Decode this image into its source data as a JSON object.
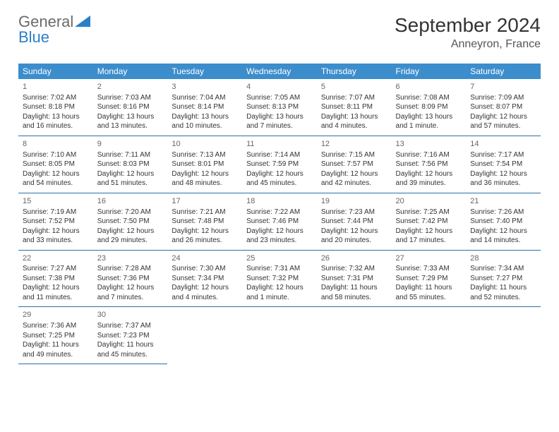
{
  "logo": {
    "word1": "General",
    "word2": "Blue"
  },
  "title": "September 2024",
  "location": "Anneyron, France",
  "header_bg": "#3c8dcc",
  "border_color": "#2c6fa8",
  "day_names": [
    "Sunday",
    "Monday",
    "Tuesday",
    "Wednesday",
    "Thursday",
    "Friday",
    "Saturday"
  ],
  "weeks": [
    [
      {
        "n": "1",
        "sr": "Sunrise: 7:02 AM",
        "ss": "Sunset: 8:18 PM",
        "d1": "Daylight: 13 hours",
        "d2": "and 16 minutes."
      },
      {
        "n": "2",
        "sr": "Sunrise: 7:03 AM",
        "ss": "Sunset: 8:16 PM",
        "d1": "Daylight: 13 hours",
        "d2": "and 13 minutes."
      },
      {
        "n": "3",
        "sr": "Sunrise: 7:04 AM",
        "ss": "Sunset: 8:14 PM",
        "d1": "Daylight: 13 hours",
        "d2": "and 10 minutes."
      },
      {
        "n": "4",
        "sr": "Sunrise: 7:05 AM",
        "ss": "Sunset: 8:13 PM",
        "d1": "Daylight: 13 hours",
        "d2": "and 7 minutes."
      },
      {
        "n": "5",
        "sr": "Sunrise: 7:07 AM",
        "ss": "Sunset: 8:11 PM",
        "d1": "Daylight: 13 hours",
        "d2": "and 4 minutes."
      },
      {
        "n": "6",
        "sr": "Sunrise: 7:08 AM",
        "ss": "Sunset: 8:09 PM",
        "d1": "Daylight: 13 hours",
        "d2": "and 1 minute."
      },
      {
        "n": "7",
        "sr": "Sunrise: 7:09 AM",
        "ss": "Sunset: 8:07 PM",
        "d1": "Daylight: 12 hours",
        "d2": "and 57 minutes."
      }
    ],
    [
      {
        "n": "8",
        "sr": "Sunrise: 7:10 AM",
        "ss": "Sunset: 8:05 PM",
        "d1": "Daylight: 12 hours",
        "d2": "and 54 minutes."
      },
      {
        "n": "9",
        "sr": "Sunrise: 7:11 AM",
        "ss": "Sunset: 8:03 PM",
        "d1": "Daylight: 12 hours",
        "d2": "and 51 minutes."
      },
      {
        "n": "10",
        "sr": "Sunrise: 7:13 AM",
        "ss": "Sunset: 8:01 PM",
        "d1": "Daylight: 12 hours",
        "d2": "and 48 minutes."
      },
      {
        "n": "11",
        "sr": "Sunrise: 7:14 AM",
        "ss": "Sunset: 7:59 PM",
        "d1": "Daylight: 12 hours",
        "d2": "and 45 minutes."
      },
      {
        "n": "12",
        "sr": "Sunrise: 7:15 AM",
        "ss": "Sunset: 7:57 PM",
        "d1": "Daylight: 12 hours",
        "d2": "and 42 minutes."
      },
      {
        "n": "13",
        "sr": "Sunrise: 7:16 AM",
        "ss": "Sunset: 7:56 PM",
        "d1": "Daylight: 12 hours",
        "d2": "and 39 minutes."
      },
      {
        "n": "14",
        "sr": "Sunrise: 7:17 AM",
        "ss": "Sunset: 7:54 PM",
        "d1": "Daylight: 12 hours",
        "d2": "and 36 minutes."
      }
    ],
    [
      {
        "n": "15",
        "sr": "Sunrise: 7:19 AM",
        "ss": "Sunset: 7:52 PM",
        "d1": "Daylight: 12 hours",
        "d2": "and 33 minutes."
      },
      {
        "n": "16",
        "sr": "Sunrise: 7:20 AM",
        "ss": "Sunset: 7:50 PM",
        "d1": "Daylight: 12 hours",
        "d2": "and 29 minutes."
      },
      {
        "n": "17",
        "sr": "Sunrise: 7:21 AM",
        "ss": "Sunset: 7:48 PM",
        "d1": "Daylight: 12 hours",
        "d2": "and 26 minutes."
      },
      {
        "n": "18",
        "sr": "Sunrise: 7:22 AM",
        "ss": "Sunset: 7:46 PM",
        "d1": "Daylight: 12 hours",
        "d2": "and 23 minutes."
      },
      {
        "n": "19",
        "sr": "Sunrise: 7:23 AM",
        "ss": "Sunset: 7:44 PM",
        "d1": "Daylight: 12 hours",
        "d2": "and 20 minutes."
      },
      {
        "n": "20",
        "sr": "Sunrise: 7:25 AM",
        "ss": "Sunset: 7:42 PM",
        "d1": "Daylight: 12 hours",
        "d2": "and 17 minutes."
      },
      {
        "n": "21",
        "sr": "Sunrise: 7:26 AM",
        "ss": "Sunset: 7:40 PM",
        "d1": "Daylight: 12 hours",
        "d2": "and 14 minutes."
      }
    ],
    [
      {
        "n": "22",
        "sr": "Sunrise: 7:27 AM",
        "ss": "Sunset: 7:38 PM",
        "d1": "Daylight: 12 hours",
        "d2": "and 11 minutes."
      },
      {
        "n": "23",
        "sr": "Sunrise: 7:28 AM",
        "ss": "Sunset: 7:36 PM",
        "d1": "Daylight: 12 hours",
        "d2": "and 7 minutes."
      },
      {
        "n": "24",
        "sr": "Sunrise: 7:30 AM",
        "ss": "Sunset: 7:34 PM",
        "d1": "Daylight: 12 hours",
        "d2": "and 4 minutes."
      },
      {
        "n": "25",
        "sr": "Sunrise: 7:31 AM",
        "ss": "Sunset: 7:32 PM",
        "d1": "Daylight: 12 hours",
        "d2": "and 1 minute."
      },
      {
        "n": "26",
        "sr": "Sunrise: 7:32 AM",
        "ss": "Sunset: 7:31 PM",
        "d1": "Daylight: 11 hours",
        "d2": "and 58 minutes."
      },
      {
        "n": "27",
        "sr": "Sunrise: 7:33 AM",
        "ss": "Sunset: 7:29 PM",
        "d1": "Daylight: 11 hours",
        "d2": "and 55 minutes."
      },
      {
        "n": "28",
        "sr": "Sunrise: 7:34 AM",
        "ss": "Sunset: 7:27 PM",
        "d1": "Daylight: 11 hours",
        "d2": "and 52 minutes."
      }
    ],
    [
      {
        "n": "29",
        "sr": "Sunrise: 7:36 AM",
        "ss": "Sunset: 7:25 PM",
        "d1": "Daylight: 11 hours",
        "d2": "and 49 minutes."
      },
      {
        "n": "30",
        "sr": "Sunrise: 7:37 AM",
        "ss": "Sunset: 7:23 PM",
        "d1": "Daylight: 11 hours",
        "d2": "and 45 minutes."
      },
      null,
      null,
      null,
      null,
      null
    ]
  ]
}
